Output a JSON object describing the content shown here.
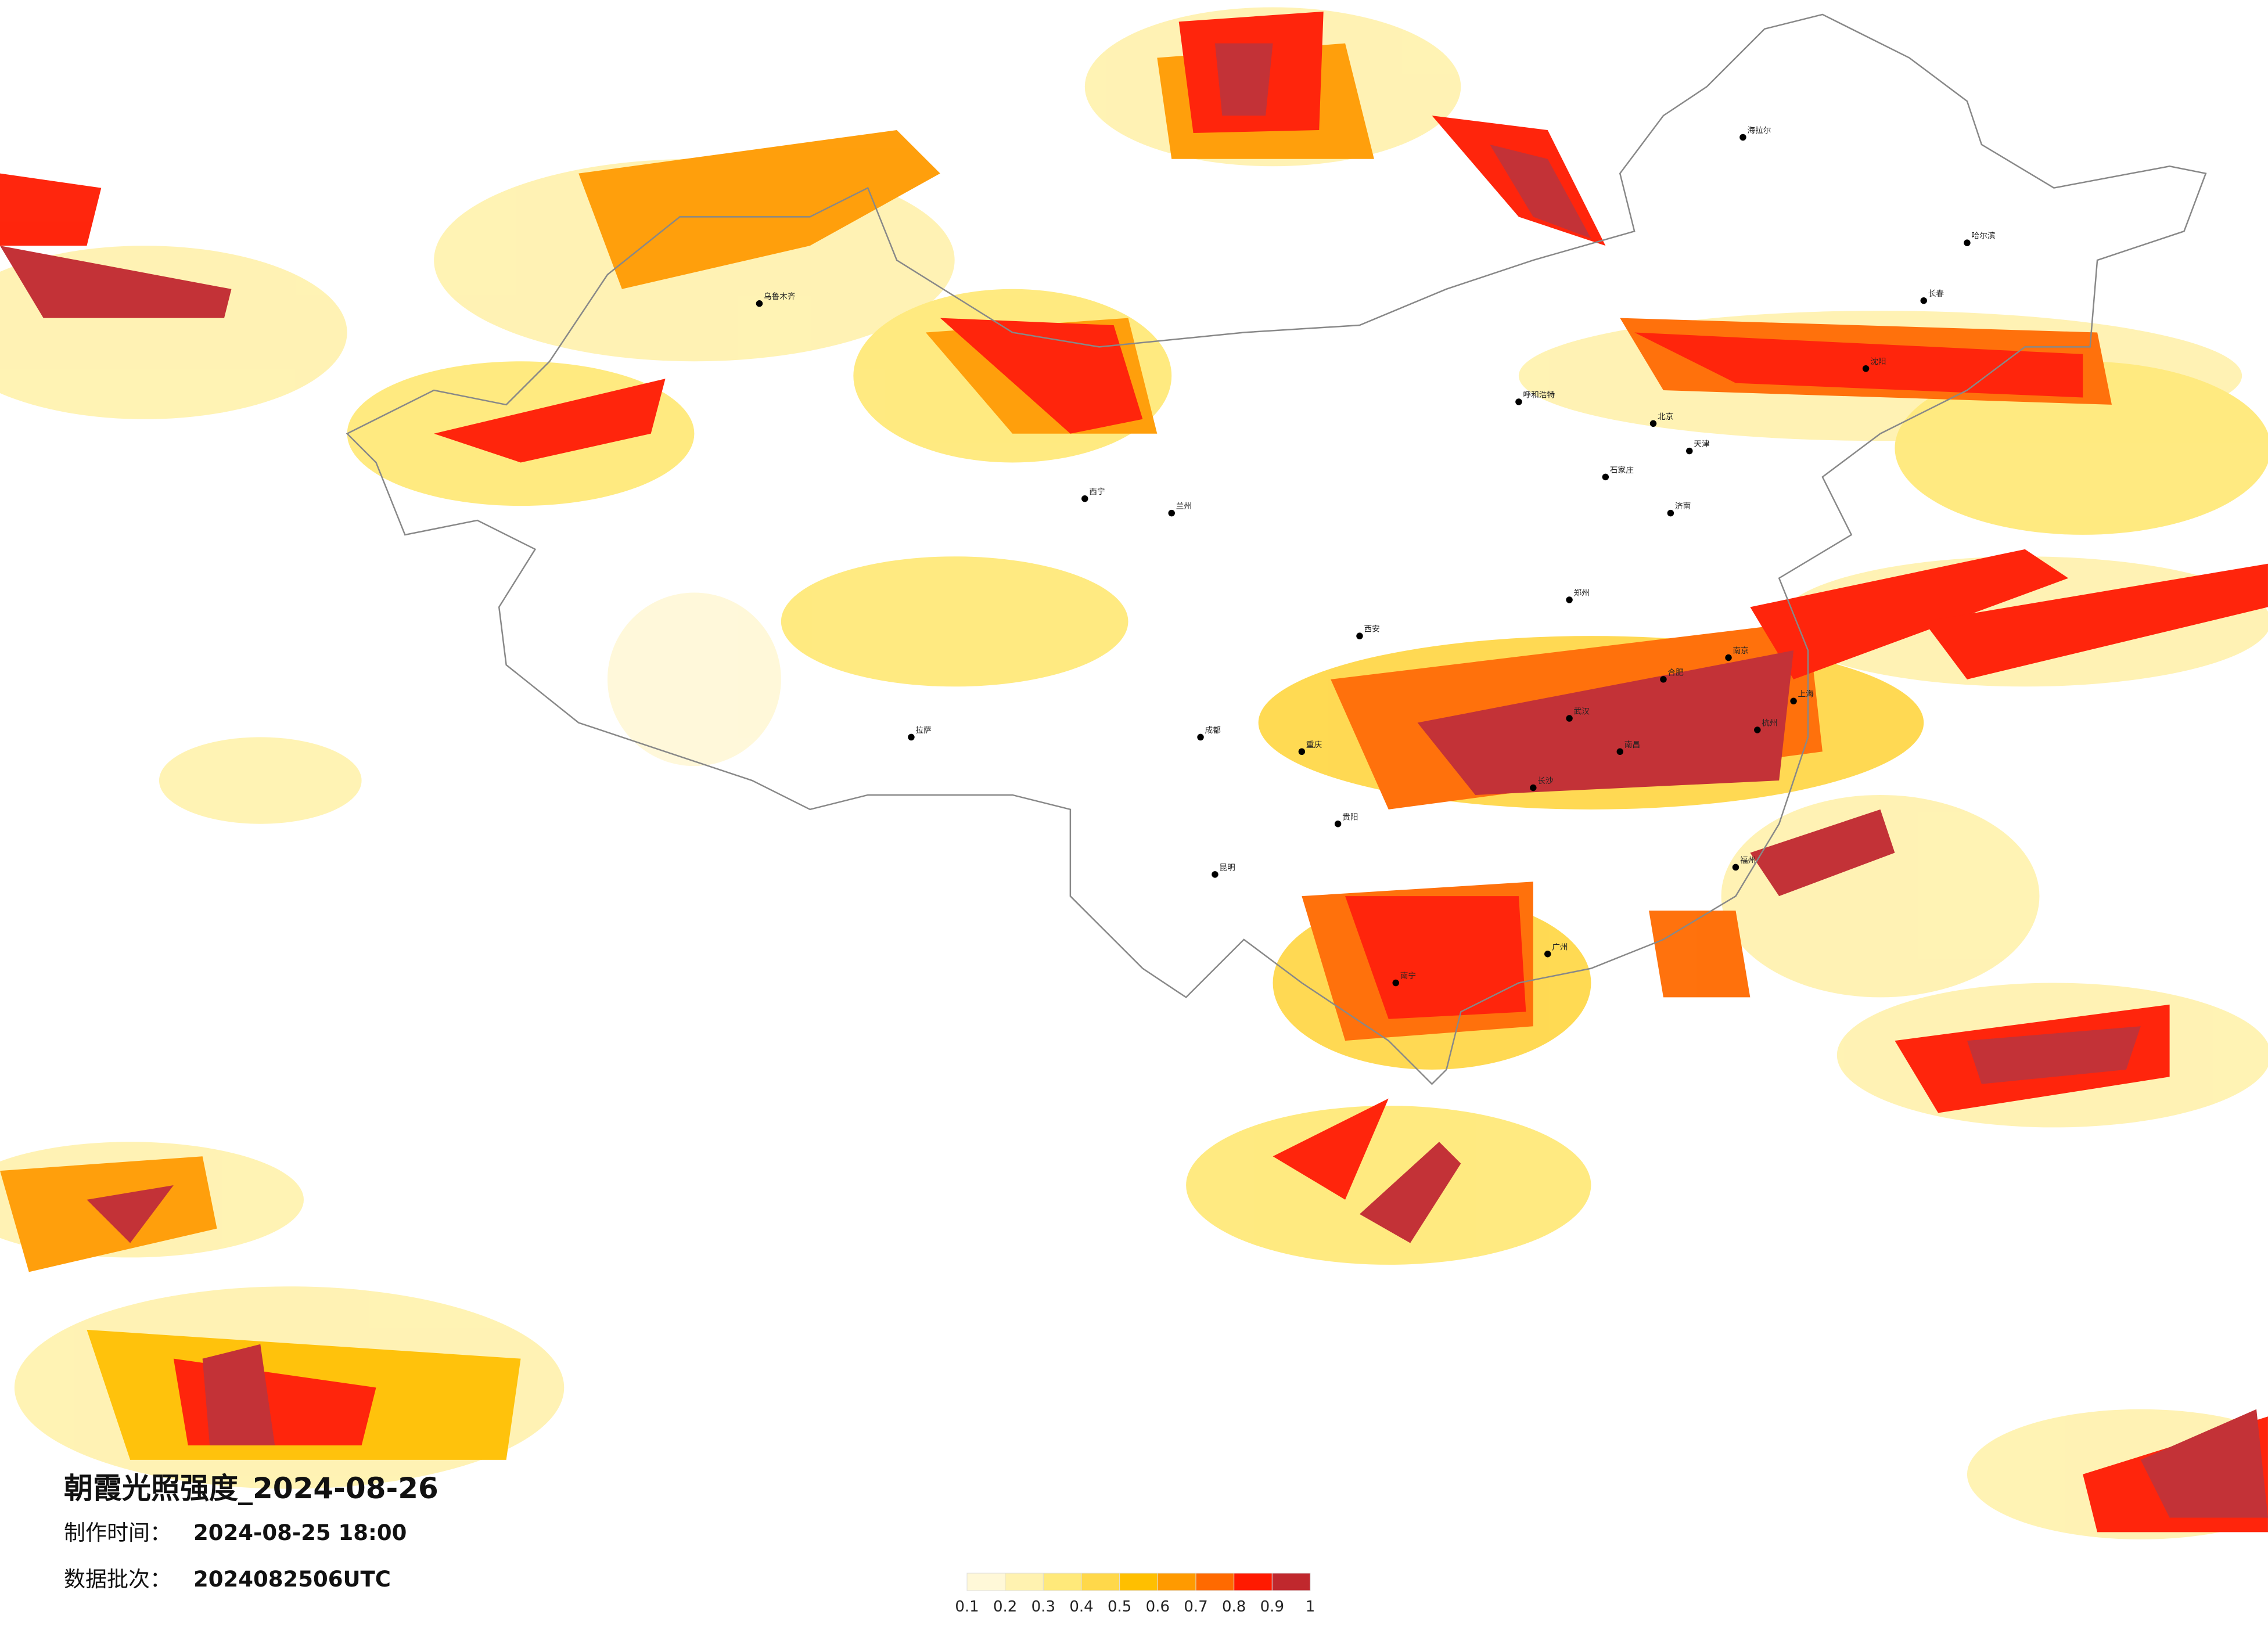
{
  "title": "朝霞光照强度_2024-08-26",
  "made": {
    "label": "制作时间：",
    "value": "2024-08-25 18:00"
  },
  "batch": {
    "label": "数据批次：",
    "value": "2024082506UTC"
  },
  "colorbar": {
    "range": [
      0.1,
      1
    ],
    "ticks": [
      0.1,
      0.2,
      0.3,
      0.4,
      0.5,
      0.6,
      0.7,
      0.8,
      0.9,
      1
    ],
    "colors": [
      "#fff8d8",
      "#fff2b0",
      "#ffe97a",
      "#ffd84a",
      "#ffbf00",
      "#ff9a00",
      "#ff6a00",
      "#ff1a00",
      "#c0282d"
    ]
  },
  "cities": [
    "哈尔滨",
    "长春",
    "沈阳",
    "北京",
    "天津",
    "石家庄",
    "郑州",
    "武汉",
    "长沙",
    "南昌",
    "上海",
    "杭州",
    "福州",
    "广州",
    "南宁",
    "贵阳",
    "昆明",
    "成都",
    "重庆",
    "西安",
    "兰州",
    "西宁",
    "拉萨",
    "乌鲁木齐",
    "呼和浩特",
    "济南",
    "南京",
    "合肥",
    "海拉尔"
  ]
}
